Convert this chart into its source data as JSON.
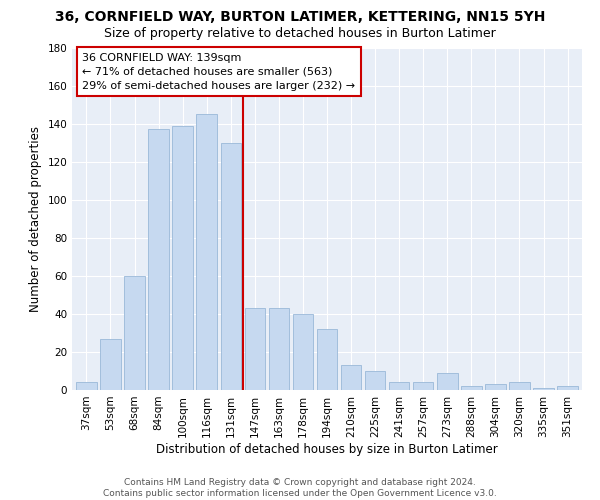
{
  "title": "36, CORNFIELD WAY, BURTON LATIMER, KETTERING, NN15 5YH",
  "subtitle": "Size of property relative to detached houses in Burton Latimer",
  "xlabel": "Distribution of detached houses by size in Burton Latimer",
  "ylabel": "Number of detached properties",
  "categories": [
    "37sqm",
    "53sqm",
    "68sqm",
    "84sqm",
    "100sqm",
    "116sqm",
    "131sqm",
    "147sqm",
    "163sqm",
    "178sqm",
    "194sqm",
    "210sqm",
    "225sqm",
    "241sqm",
    "257sqm",
    "273sqm",
    "288sqm",
    "304sqm",
    "320sqm",
    "335sqm",
    "351sqm"
  ],
  "values": [
    4,
    27,
    60,
    137,
    139,
    145,
    130,
    43,
    43,
    40,
    32,
    13,
    10,
    4,
    4,
    9,
    2,
    3,
    4,
    1,
    2
  ],
  "bar_color": "#c6d9f0",
  "bar_edge_color": "#9ab8d8",
  "vline_index": 6.5,
  "vline_color": "#cc0000",
  "annotation_text": "36 CORNFIELD WAY: 139sqm\n← 71% of detached houses are smaller (563)\n29% of semi-detached houses are larger (232) →",
  "annotation_box_color": "#ffffff",
  "annotation_box_edge": "#cc0000",
  "footer_text": "Contains HM Land Registry data © Crown copyright and database right 2024.\nContains public sector information licensed under the Open Government Licence v3.0.",
  "ylim": [
    0,
    180
  ],
  "yticks": [
    0,
    20,
    40,
    60,
    80,
    100,
    120,
    140,
    160,
    180
  ],
  "title_fontsize": 10,
  "subtitle_fontsize": 9,
  "xlabel_fontsize": 8.5,
  "ylabel_fontsize": 8.5,
  "tick_fontsize": 7.5,
  "footer_fontsize": 6.5,
  "bg_color": "#e8eef7"
}
